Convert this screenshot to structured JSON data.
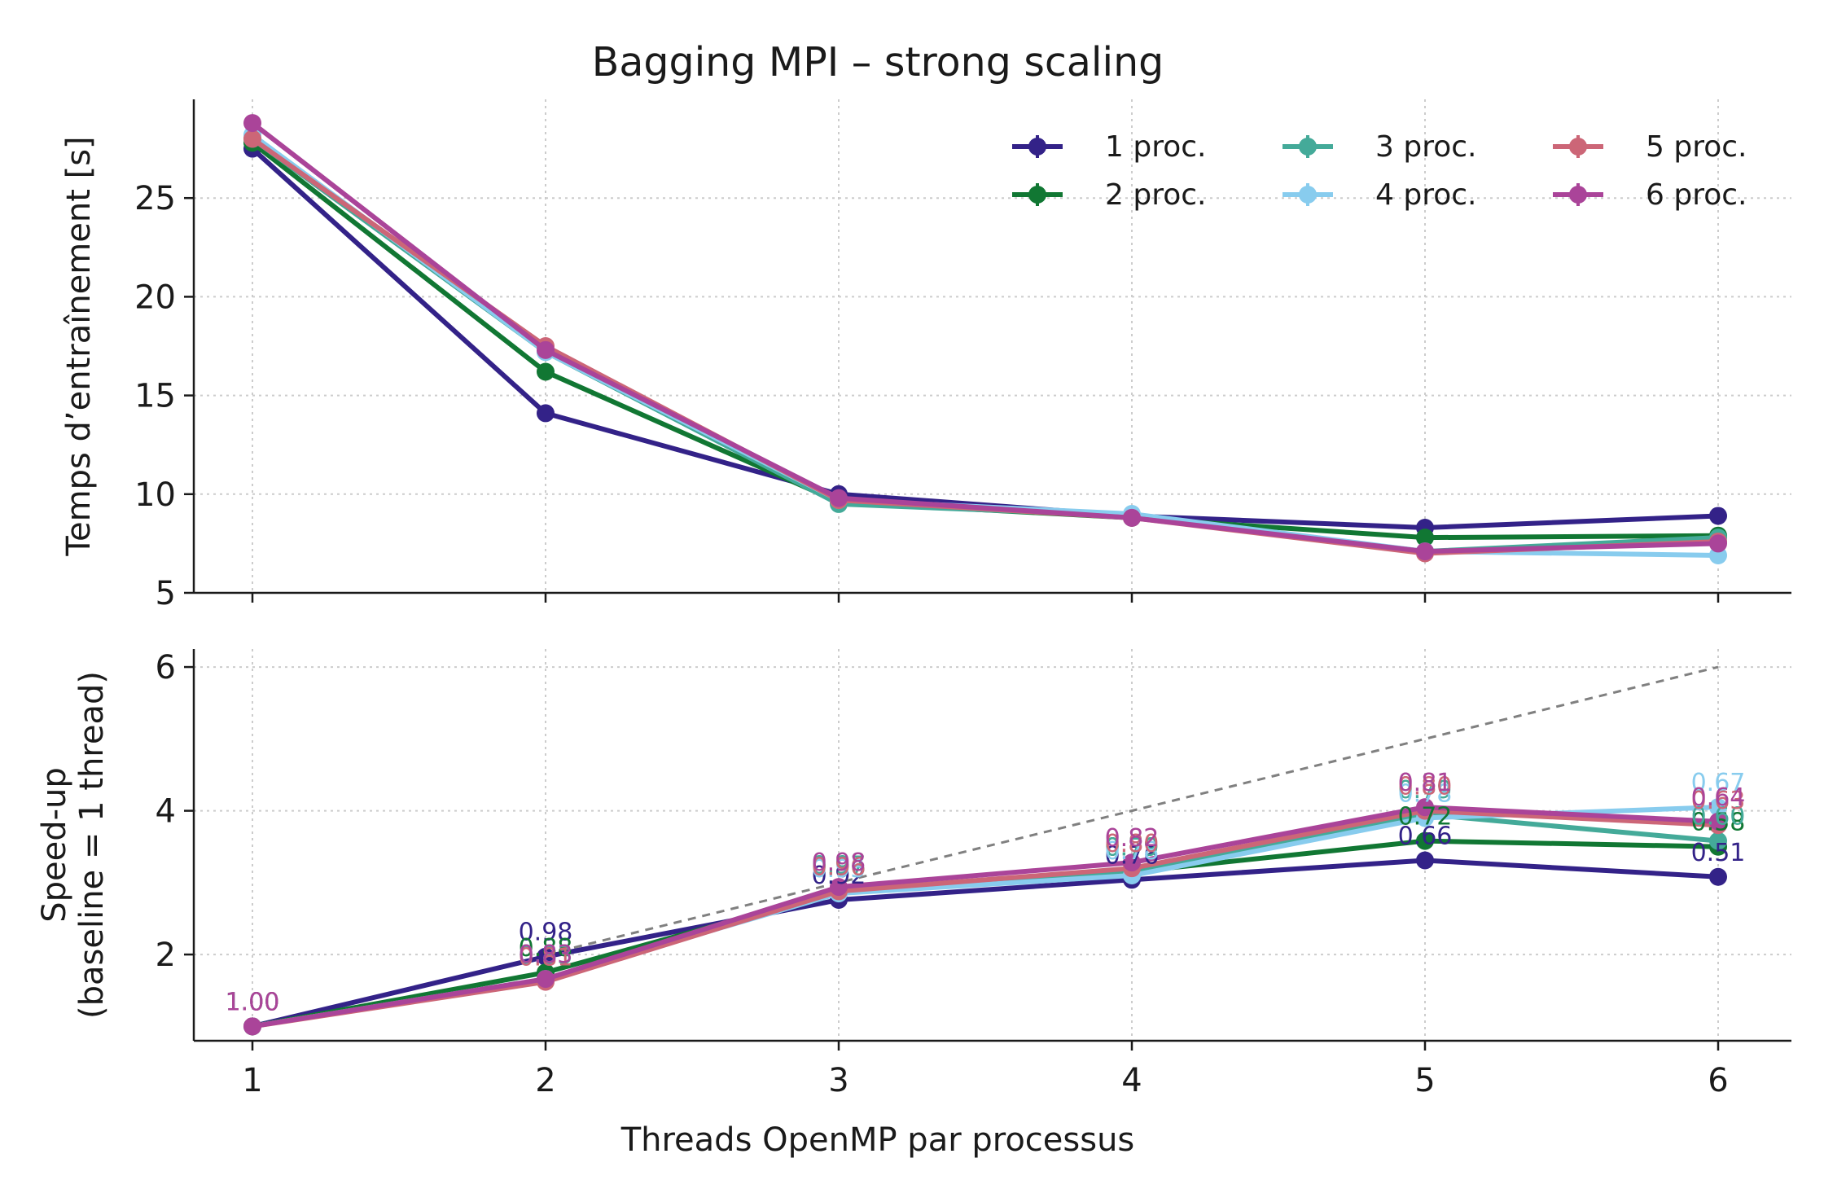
{
  "title": "Bagging MPI – strong scaling",
  "xlabel": "Threads OpenMP par processus",
  "chart_data": [
    {
      "type": "line",
      "ylabel": "Temps d’entraînement [s]",
      "x": [
        1,
        2,
        3,
        4,
        5,
        6
      ],
      "xlim": [
        0.8,
        6.25
      ],
      "ylim": [
        5,
        30
      ],
      "yticks": [
        5,
        10,
        15,
        20,
        25
      ],
      "grid": true,
      "legend_position": "top-right",
      "series": [
        {
          "name": "1 proc.",
          "color": "#332288",
          "values": [
            27.5,
            14.1,
            10.0,
            8.9,
            8.3,
            8.9
          ]
        },
        {
          "name": "2 proc.",
          "color": "#117733",
          "values": [
            27.8,
            16.2,
            9.6,
            8.8,
            7.8,
            7.9
          ]
        },
        {
          "name": "3 proc.",
          "color": "#44AA99",
          "values": [
            28.0,
            17.2,
            9.5,
            8.9,
            7.1,
            7.8
          ]
        },
        {
          "name": "4 proc.",
          "color": "#88CCEE",
          "values": [
            28.2,
            17.2,
            9.7,
            9.0,
            7.1,
            6.9
          ]
        },
        {
          "name": "5 proc.",
          "color": "#CC6677",
          "values": [
            28.0,
            17.5,
            9.7,
            8.8,
            7.0,
            7.6
          ]
        },
        {
          "name": "6 proc.",
          "color": "#AA4499",
          "values": [
            28.8,
            17.3,
            9.8,
            8.8,
            7.1,
            7.5
          ]
        }
      ]
    },
    {
      "type": "line",
      "ylabel": "Speed-up\n(baseline = 1 thread)",
      "x": [
        1,
        2,
        3,
        4,
        5,
        6
      ],
      "xticks": [
        "1",
        "2",
        "3",
        "4",
        "5",
        "6"
      ],
      "xlim": [
        0.8,
        6.25
      ],
      "ylim": [
        0.8,
        6.25
      ],
      "yticks": [
        2,
        4,
        6
      ],
      "grid": true,
      "ideal_line": {
        "x": [
          2,
          6
        ],
        "values": [
          2,
          6
        ],
        "color": "#808080"
      },
      "series": [
        {
          "name": "1 proc.",
          "color": "#332288",
          "values": [
            1.0,
            1.97,
            2.76,
            3.04,
            3.31,
            3.08
          ],
          "labels": [
            "1.00",
            "0.98",
            "0.92",
            "0.76",
            "0.66",
            "0.51"
          ]
        },
        {
          "name": "2 proc.",
          "color": "#117733",
          "values": [
            1.0,
            1.75,
            2.88,
            3.15,
            3.58,
            3.5
          ],
          "labels": [
            "1.00",
            "0.88",
            "0.96",
            "0.79",
            "0.72",
            "0.58"
          ]
        },
        {
          "name": "3 proc.",
          "color": "#44AA99",
          "values": [
            1.0,
            1.65,
            2.9,
            3.15,
            3.95,
            3.58
          ],
          "labels": [
            "1.00",
            "0.83",
            "0.97",
            "0.79",
            "0.79",
            "0.60"
          ]
        },
        {
          "name": "4 proc.",
          "color": "#88CCEE",
          "values": [
            1.0,
            1.66,
            2.85,
            3.1,
            3.9,
            4.05
          ],
          "labels": [
            "1.00",
            "0.83",
            "0.95",
            "0.78",
            "0.78",
            "0.67"
          ]
        },
        {
          "name": "5 proc.",
          "color": "#CC6677",
          "values": [
            1.0,
            1.62,
            2.88,
            3.2,
            4.0,
            3.8
          ],
          "labels": [
            "1.00",
            "0.81",
            "0.96",
            "0.80",
            "0.80",
            "0.63"
          ]
        },
        {
          "name": "6 proc.",
          "color": "#AA4499",
          "values": [
            1.0,
            1.66,
            2.94,
            3.28,
            4.05,
            3.85
          ],
          "labels": [
            "1.00",
            "0.83",
            "0.98",
            "0.82",
            "0.81",
            "0.64"
          ]
        }
      ]
    }
  ]
}
